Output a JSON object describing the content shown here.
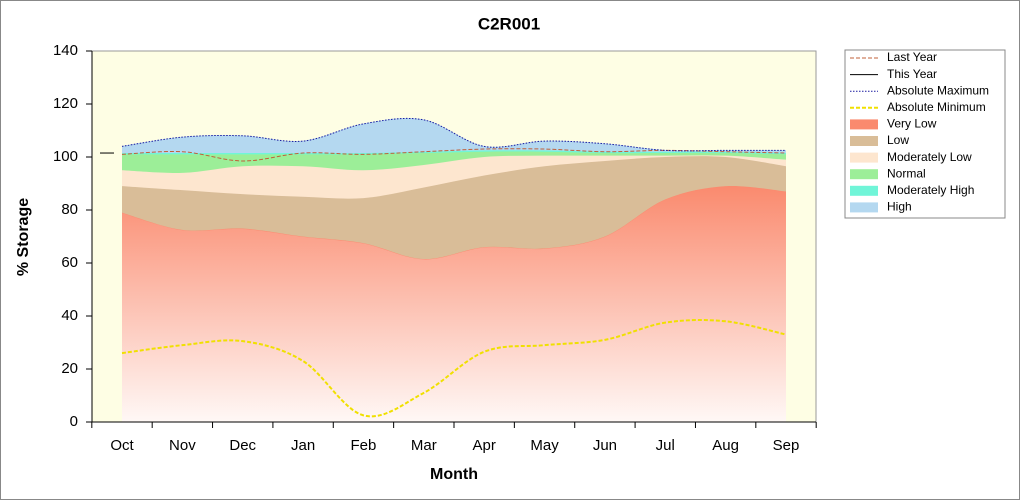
{
  "chart_data": {
    "type": "band",
    "title": "C2R001",
    "x_label": "Month",
    "y_label": "% Storage",
    "categories": [
      "Oct",
      "Nov",
      "Dec",
      "Jan",
      "Feb",
      "Mar",
      "Apr",
      "May",
      "Jun",
      "Jul",
      "Aug",
      "Sep"
    ],
    "ylim": [
      0,
      140
    ],
    "yticks": [
      0,
      20,
      40,
      60,
      80,
      100,
      120,
      140
    ],
    "series": [
      {
        "name": "Last Year",
        "color": "#c0603a",
        "line_style": "dashed",
        "values": [
          101,
          102,
          98.5,
          101.5,
          101,
          102,
          103,
          103,
          102,
          102.5,
          102,
          101.5
        ]
      },
      {
        "name": "This Year",
        "color": "#000000",
        "line_style": "solid",
        "values": [
          101.5,
          null,
          null,
          null,
          null,
          null,
          null,
          null,
          null,
          null,
          null,
          null
        ]
      },
      {
        "name": "Absolute Maximum",
        "color": "#1a1aa0",
        "line_style": "dotted",
        "values": [
          104,
          107.5,
          108,
          106,
          112.5,
          114,
          104,
          106,
          105,
          102.5,
          102.5,
          102.5
        ]
      },
      {
        "name": "Absolute Minimum",
        "color": "#f0e000",
        "line_style": "dashed",
        "values": [
          26,
          29,
          30.5,
          23,
          2.5,
          11,
          26.5,
          29,
          31,
          37.5,
          38,
          33
        ]
      },
      {
        "name": "Very Low",
        "color": "#fa8a6e",
        "values": [
          79,
          72.5,
          73,
          70,
          67.5,
          61.5,
          66,
          65.5,
          70,
          84,
          89,
          87
        ]
      },
      {
        "name": "Low",
        "color": "#d9bd98",
        "values": [
          89,
          87.5,
          86,
          85,
          84.5,
          88.5,
          93,
          96.5,
          98.5,
          100,
          100,
          96.5
        ]
      },
      {
        "name": "Moderately Low",
        "color": "#fde6cf",
        "values": [
          95,
          94,
          96.5,
          96.5,
          95,
          97,
          100,
          100.5,
          100.5,
          100.5,
          100.5,
          99
        ]
      },
      {
        "name": "Normal",
        "color": "#9cee98",
        "values": [
          101,
          101,
          101,
          101,
          101,
          101.5,
          102,
          102,
          101.5,
          101.5,
          101.5,
          101
        ]
      },
      {
        "name": "Moderately High",
        "color": "#70f5d8",
        "values": [
          101.5,
          101.5,
          101.5,
          101.5,
          101.5,
          102,
          102.5,
          102.5,
          102,
          102,
          102,
          101.5
        ]
      },
      {
        "name": "High",
        "color": "#b4d8f0",
        "values": [
          104,
          107.5,
          108,
          106,
          112.5,
          114,
          104,
          106,
          105,
          102.5,
          102.5,
          102.5
        ]
      }
    ]
  }
}
